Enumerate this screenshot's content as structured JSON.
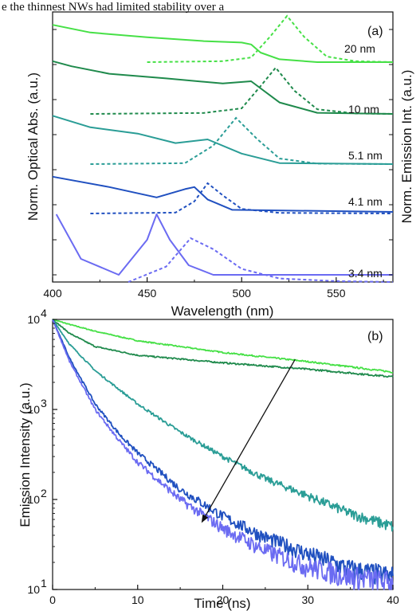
{
  "header_text": "e the thinnest NWs had limited stability over a",
  "colors": {
    "s20": "#46e046",
    "s10": "#1f8a4c",
    "s51": "#2a9d96",
    "s41": "#2050c0",
    "s34": "#6b6bf2"
  },
  "chart_data": [
    {
      "type": "line",
      "panel": "(a)",
      "xlabel": "Wavelength (nm)",
      "ylabel_left": "Norm. Optical Abs. (a.u.)",
      "ylabel_right": "Norm. Emission Int. (a.u.)",
      "xlim": [
        400,
        580
      ],
      "x_ticks": [
        400,
        450,
        500,
        550
      ],
      "y_scale": "normalized, vertically offset",
      "series": [
        {
          "name": "20 nm",
          "color": "#46e046",
          "absorption": {
            "x": [
              400,
              420,
              450,
              480,
              500,
              505,
              510,
              520,
              540,
              580
            ],
            "y": [
              0.78,
              0.62,
              0.52,
              0.44,
              0.41,
              0.37,
              0.2,
              0.06,
              0.0,
              0.0
            ]
          },
          "emission": {
            "x": [
              450,
              490,
              505,
              515,
              524,
              533,
              545,
              560,
              580
            ],
            "y": [
              0.0,
              0.02,
              0.1,
              0.55,
              1.0,
              0.55,
              0.12,
              0.02,
              0.0
            ]
          }
        },
        {
          "name": "10 nm",
          "color": "#1f8a4c",
          "absorption": {
            "x": [
              400,
              410,
              430,
              460,
              490,
              505,
              520,
              540,
              580
            ],
            "y": [
              0.92,
              0.83,
              0.7,
              0.62,
              0.53,
              0.57,
              0.2,
              0.02,
              0.0
            ]
          },
          "emission": {
            "x": [
              420,
              480,
              500,
              510,
              518,
              528,
              540,
              560,
              580
            ],
            "y": [
              0.0,
              0.02,
              0.12,
              0.6,
              1.0,
              0.5,
              0.1,
              0.01,
              0.0
            ]
          }
        },
        {
          "name": "5.1 nm",
          "color": "#2a9d96",
          "absorption": {
            "x": [
              400,
              420,
              445,
              465,
              482,
              500,
              520,
              580
            ],
            "y": [
              0.92,
              0.7,
              0.58,
              0.4,
              0.47,
              0.2,
              0.02,
              0.0
            ]
          },
          "emission": {
            "x": [
              420,
              470,
              485,
              497,
              508,
              520,
              540,
              580
            ],
            "y": [
              0.0,
              0.02,
              0.4,
              1.0,
              0.55,
              0.12,
              0.01,
              0.0
            ]
          }
        },
        {
          "name": "4.1 nm",
          "color": "#2050c0",
          "absorption": {
            "x": [
              400,
              430,
              455,
              470,
              475,
              482,
              495,
              580
            ],
            "y": [
              0.85,
              0.6,
              0.35,
              0.55,
              0.6,
              0.3,
              0.05,
              0.0
            ]
          },
          "emission": {
            "x": [
              420,
              465,
              475,
              482,
              490,
              500,
              520,
              580
            ],
            "y": [
              0.0,
              0.03,
              0.4,
              1.0,
              0.6,
              0.15,
              0.02,
              0.0
            ]
          }
        },
        {
          "name": "3.4 nm",
          "color": "#6b6bf2",
          "absorption": {
            "x": [
              402,
              415,
              435,
              450,
              455,
              462,
              472,
              485,
              500,
              580
            ],
            "y": [
              0.95,
              0.25,
              0.0,
              0.55,
              0.95,
              0.55,
              0.15,
              0.0,
              0.0,
              0.0
            ]
          },
          "emission": {
            "x": [
              440,
              460,
              473,
              485,
              500,
              520,
              550,
              580
            ],
            "y": [
              0.0,
              0.35,
              1.0,
              0.75,
              0.3,
              0.08,
              0.02,
              0.0
            ]
          }
        }
      ]
    },
    {
      "type": "line",
      "panel": "(b)",
      "xlabel": "Time (ns)",
      "ylabel": "Emission Intensity (a.u.)",
      "xlim": [
        0,
        40
      ],
      "ylim": [
        10,
        10000
      ],
      "y_scale": "log",
      "x_ticks": [
        0,
        10,
        20,
        30,
        40
      ],
      "series": [
        {
          "name": "20 nm",
          "color": "#46e046",
          "x": [
            0,
            2,
            5,
            10,
            20,
            30,
            40
          ],
          "y": [
            10000,
            8800,
            7400,
            5800,
            4300,
            3400,
            2600
          ]
        },
        {
          "name": "10 nm",
          "color": "#1f8a4c",
          "x": [
            0,
            2,
            5,
            10,
            20,
            30,
            40
          ],
          "y": [
            10000,
            7000,
            5000,
            4000,
            3300,
            2800,
            2300
          ]
        },
        {
          "name": "5.1 nm",
          "color": "#2a9d96",
          "x": [
            0,
            2,
            5,
            10,
            15,
            20,
            25,
            30,
            35,
            40
          ],
          "y": [
            10000,
            5300,
            2700,
            1150,
            560,
            300,
            170,
            110,
            70,
            50
          ]
        },
        {
          "name": "4.1 nm",
          "color": "#2050c0",
          "x": [
            0,
            2,
            5,
            8,
            10,
            15,
            20,
            25,
            30,
            35,
            40
          ],
          "y": [
            10000,
            3700,
            1150,
            510,
            330,
            130,
            65,
            38,
            25,
            17,
            14
          ]
        },
        {
          "name": "3.4 nm",
          "color": "#6b6bf2",
          "x": [
            0,
            2,
            5,
            8,
            10,
            15,
            20,
            25,
            30,
            35,
            40
          ],
          "y": [
            10000,
            3400,
            1000,
            430,
            260,
            100,
            48,
            27,
            18,
            14,
            12
          ]
        }
      ],
      "annotations": [
        {
          "type": "arrow",
          "from": [
            28.5,
            3600
          ],
          "to": [
            17.5,
            55
          ]
        }
      ]
    }
  ],
  "text": {
    "panel_a": "(a)",
    "panel_b": "(b)",
    "xlabel_a": "Wavelength (nm)",
    "ylabel_a_left": "Norm. Optical Abs. (a.u.)",
    "ylabel_a_right": "Norm. Emission Int. (a.u.)",
    "xlabel_b": "Time (ns)",
    "ylabel_b": "Emission Intensity (a.u.)",
    "size_20": "20 nm",
    "size_10": "10 nm",
    "size_51": "5.1 nm",
    "size_41": "4.1 nm",
    "size_34": "3.4 nm",
    "xtick_a": [
      "400",
      "450",
      "500",
      "550"
    ],
    "xtick_b": [
      "0",
      "10",
      "20",
      "30",
      "40"
    ],
    "ytick_b": [
      "10",
      "10",
      "10",
      "10"
    ],
    "ytick_b_exp": [
      "1",
      "2",
      "3",
      "4"
    ]
  }
}
